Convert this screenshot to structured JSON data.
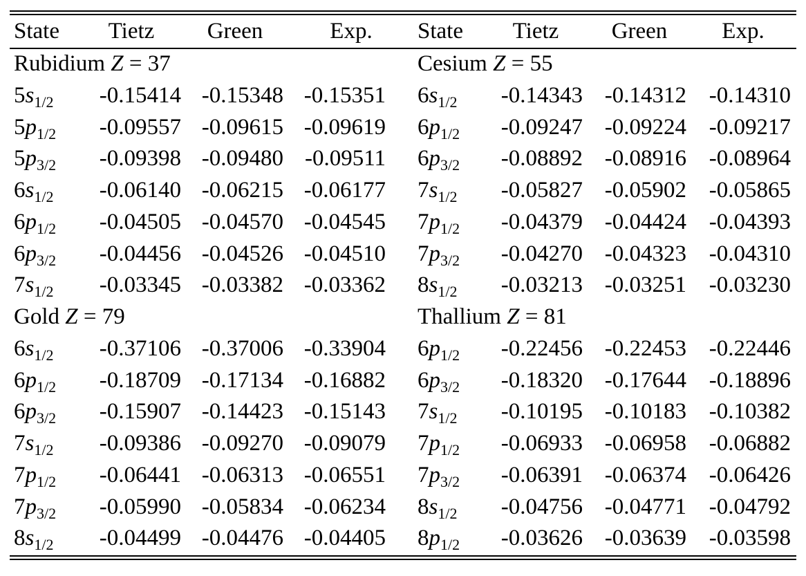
{
  "header": [
    "State",
    "Tietz",
    "Green",
    "Exp.",
    "State",
    "Tietz",
    "Green",
    "Exp."
  ],
  "sections": [
    {
      "left": {
        "element": "Rubidium",
        "symbol": "Z",
        "relation": "=",
        "z": 37
      },
      "right": {
        "element": "Cesium",
        "symbol": "Z",
        "relation": "=",
        "z": 55
      },
      "rows": [
        [
          {
            "n": "5",
            "l": "s",
            "j": "1/2"
          },
          "-0.15414",
          "-0.15348",
          "-0.15351",
          {
            "n": "6",
            "l": "s",
            "j": "1/2"
          },
          "-0.14343",
          "-0.14312",
          "-0.14310"
        ],
        [
          {
            "n": "5",
            "l": "p",
            "j": "1/2"
          },
          "-0.09557",
          "-0.09615",
          "-0.09619",
          {
            "n": "6",
            "l": "p",
            "j": "1/2"
          },
          "-0.09247",
          "-0.09224",
          "-0.09217"
        ],
        [
          {
            "n": "5",
            "l": "p",
            "j": "3/2"
          },
          "-0.09398",
          "-0.09480",
          "-0.09511",
          {
            "n": "6",
            "l": "p",
            "j": "3/2"
          },
          "-0.08892",
          "-0.08916",
          "-0.08964"
        ],
        [
          {
            "n": "6",
            "l": "s",
            "j": "1/2"
          },
          "-0.06140",
          "-0.06215",
          "-0.06177",
          {
            "n": "7",
            "l": "s",
            "j": "1/2"
          },
          "-0.05827",
          "-0.05902",
          "-0.05865"
        ],
        [
          {
            "n": "6",
            "l": "p",
            "j": "1/2"
          },
          "-0.04505",
          "-0.04570",
          "-0.04545",
          {
            "n": "7",
            "l": "p",
            "j": "1/2"
          },
          "-0.04379",
          "-0.04424",
          "-0.04393"
        ],
        [
          {
            "n": "6",
            "l": "p",
            "j": "3/2"
          },
          "-0.04456",
          "-0.04526",
          "-0.04510",
          {
            "n": "7",
            "l": "p",
            "j": "3/2"
          },
          "-0.04270",
          "-0.04323",
          "-0.04310"
        ],
        [
          {
            "n": "7",
            "l": "s",
            "j": "1/2"
          },
          "-0.03345",
          "-0.03382",
          "-0.03362",
          {
            "n": "8",
            "l": "s",
            "j": "1/2"
          },
          "-0.03213",
          "-0.03251",
          "-0.03230"
        ]
      ]
    },
    {
      "left": {
        "element": "Gold",
        "symbol": "Z",
        "relation": "=",
        "z": 79
      },
      "right": {
        "element": "Thallium",
        "symbol": "Z",
        "relation": "=",
        "z": 81
      },
      "rows": [
        [
          {
            "n": "6",
            "l": "s",
            "j": "1/2"
          },
          "-0.37106",
          "-0.37006",
          "-0.33904",
          {
            "n": "6",
            "l": "p",
            "j": "1/2"
          },
          "-0.22456",
          "-0.22453",
          "-0.22446"
        ],
        [
          {
            "n": "6",
            "l": "p",
            "j": "1/2"
          },
          "-0.18709",
          "-0.17134",
          "-0.16882",
          {
            "n": "6",
            "l": "p",
            "j": "3/2"
          },
          "-0.18320",
          "-0.17644",
          "-0.18896"
        ],
        [
          {
            "n": "6",
            "l": "p",
            "j": "3/2"
          },
          "-0.15907",
          "-0.14423",
          "-0.15143",
          {
            "n": "7",
            "l": "s",
            "j": "1/2"
          },
          "-0.10195",
          "-0.10183",
          "-0.10382"
        ],
        [
          {
            "n": "7",
            "l": "s",
            "j": "1/2"
          },
          "-0.09386",
          "-0.09270",
          "-0.09079",
          {
            "n": "7",
            "l": "p",
            "j": "1/2"
          },
          "-0.06933",
          "-0.06958",
          "-0.06882"
        ],
        [
          {
            "n": "7",
            "l": "p",
            "j": "1/2"
          },
          "-0.06441",
          "-0.06313",
          "-0.06551",
          {
            "n": "7",
            "l": "p",
            "j": "3/2"
          },
          "-0.06391",
          "-0.06374",
          "-0.06426"
        ],
        [
          {
            "n": "7",
            "l": "p",
            "j": "3/2"
          },
          "-0.05990",
          "-0.05834",
          "-0.06234",
          {
            "n": "8",
            "l": "s",
            "j": "1/2"
          },
          "-0.04756",
          "-0.04771",
          "-0.04792"
        ],
        [
          {
            "n": "8",
            "l": "s",
            "j": "1/2"
          },
          "-0.04499",
          "-0.04476",
          "-0.04405",
          {
            "n": "8",
            "l": "p",
            "j": "1/2"
          },
          "-0.03626",
          "-0.03639",
          "-0.03598"
        ]
      ]
    }
  ]
}
